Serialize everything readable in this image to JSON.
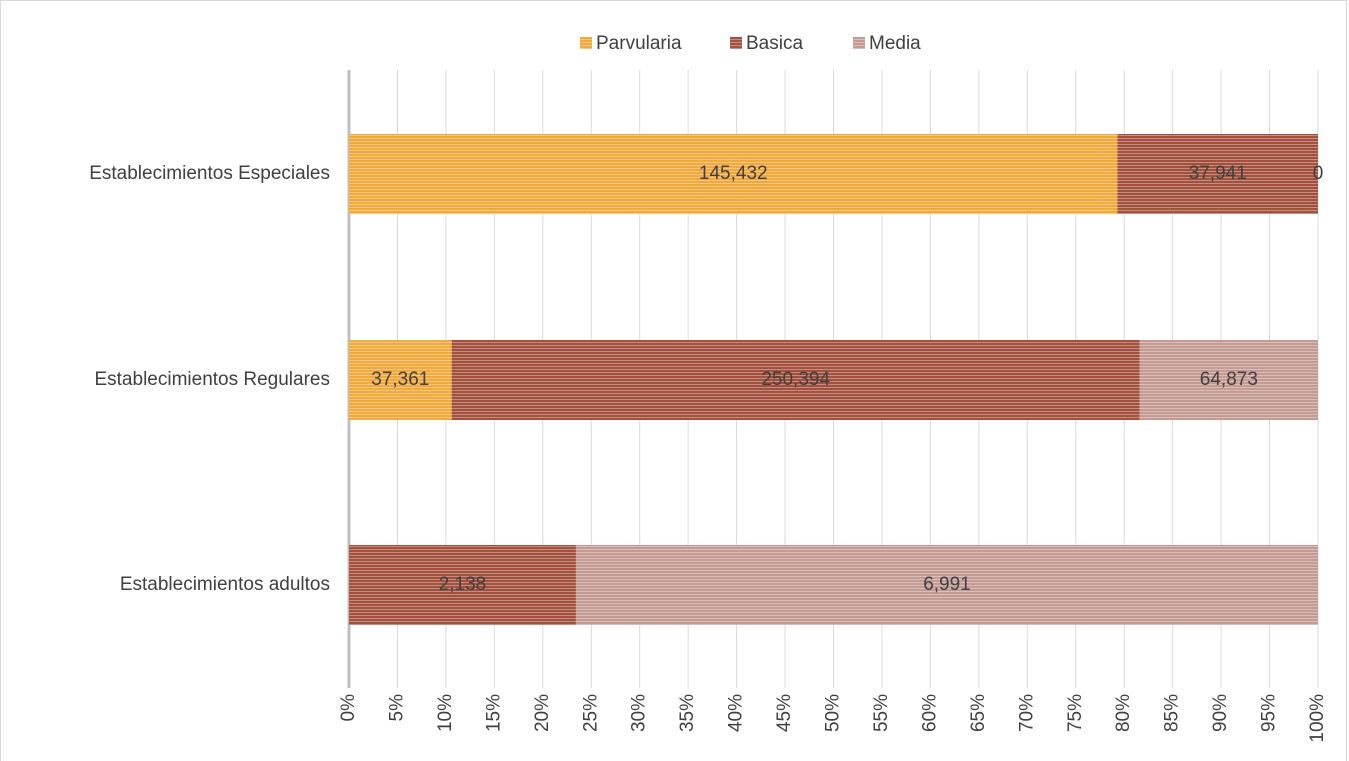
{
  "chart_data": {
    "type": "bar",
    "orientation": "horizontal",
    "stacked": "percent",
    "categories": [
      "Establecimientos Especiales",
      "Establecimientos Regulares",
      "Establecimientos adultos"
    ],
    "series": [
      {
        "name": "Parvularia",
        "color": "#f2a93b",
        "values": [
          145432,
          37361,
          null
        ],
        "value_labels": [
          "145,432",
          "37,361",
          null
        ]
      },
      {
        "name": "Basica",
        "color": "#a3513d",
        "values": [
          37941,
          250394,
          2138
        ],
        "value_labels": [
          "37,941",
          "250,394",
          "2,138"
        ]
      },
      {
        "name": "Media",
        "color": "#c49a92",
        "values": [
          0,
          64873,
          6991
        ],
        "value_labels": [
          "0",
          "64,873",
          "6,991"
        ]
      }
    ],
    "xlim": [
      0,
      100
    ],
    "xticks": [
      {
        "value": 0,
        "label": "0%"
      },
      {
        "value": 5,
        "label": "5%"
      },
      {
        "value": 10,
        "label": "10%"
      },
      {
        "value": 15,
        "label": "15%"
      },
      {
        "value": 20,
        "label": "20%"
      },
      {
        "value": 25,
        "label": "25%"
      },
      {
        "value": 30,
        "label": "30%"
      },
      {
        "value": 35,
        "label": "35%"
      },
      {
        "value": 40,
        "label": "40%"
      },
      {
        "value": 45,
        "label": "45%"
      },
      {
        "value": 50,
        "label": "50%"
      },
      {
        "value": 55,
        "label": "55%"
      },
      {
        "value": 60,
        "label": "60%"
      },
      {
        "value": 65,
        "label": "65%"
      },
      {
        "value": 70,
        "label": "70%"
      },
      {
        "value": 75,
        "label": "75%"
      },
      {
        "value": 80,
        "label": "80%"
      },
      {
        "value": 85,
        "label": "85%"
      },
      {
        "value": 90,
        "label": "90%"
      },
      {
        "value": 95,
        "label": "95%"
      },
      {
        "value": 100,
        "label": "100%"
      }
    ],
    "grid": true,
    "legend": "top"
  }
}
